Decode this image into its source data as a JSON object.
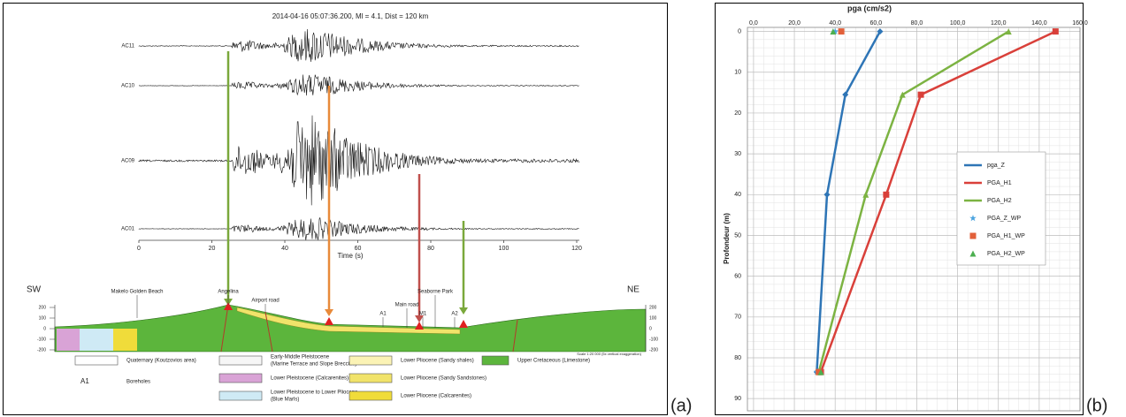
{
  "panel_labels": [
    "(a)",
    "(b)"
  ],
  "panel_a": {
    "title": "2014-04-16 05:07:36.200, Ml = 4.1, Dist = 120 km",
    "stations": [
      "AC11",
      "AC10",
      "AC09",
      "AC01"
    ],
    "time_axis": {
      "label": "Time (s)",
      "ticks": [
        0,
        20,
        40,
        60,
        80,
        100,
        120
      ]
    },
    "section": {
      "left": "SW",
      "right": "NE",
      "elevation_ticks": [
        200,
        100,
        0,
        -100,
        -200
      ],
      "places": [
        "Makelo Golden Beach",
        "Angelina",
        "Airport road",
        "Main road",
        "Seaborne Park",
        "A1",
        "M1",
        "A2"
      ],
      "scale_note": "Scale 1:20 000 (5x vertical exaggeration)"
    },
    "legend": [
      {
        "lines": [
          "Quaternary (Koutzovios area)"
        ]
      },
      {
        "lines": [
          "Boreholes"
        ],
        "symbol": "A1"
      },
      {
        "lines": [
          "Early-Middle Pleistocene",
          "(Marine Terrace and Slope Breccias)"
        ]
      },
      {
        "lines": [
          "Lower Pleistocene (Calcarenites)"
        ]
      },
      {
        "lines": [
          "Lower Pleistocene to Lower Pliocene",
          "(Blue Marls)"
        ]
      },
      {
        "lines": [
          "Lower Pliocene (Sandy shales)"
        ]
      },
      {
        "lines": [
          "Lower Pliocene (Sandy Sandstones)"
        ]
      },
      {
        "lines": [
          "Lower Pliocene (Calcarenites)"
        ]
      },
      {
        "lines": [
          "Upper Cretaceous (Limestone)"
        ]
      }
    ]
  },
  "chart_data": {
    "type": "line",
    "title": "pga (cm/s2)",
    "y_label": "Profondeur (m)",
    "x_axis_position": "top",
    "y_inverted": true,
    "grid": true,
    "minor_grid": true,
    "legend": "center right",
    "xlim": [
      -3,
      160
    ],
    "xticks": [
      {
        "value": 0,
        "label": "0,0"
      },
      {
        "value": 20,
        "label": "20,0"
      },
      {
        "value": 40,
        "label": "40,0"
      },
      {
        "value": 60,
        "label": "60,0"
      },
      {
        "value": 80,
        "label": "80,0"
      },
      {
        "value": 100,
        "label": "100,0"
      },
      {
        "value": 120,
        "label": "120,0"
      },
      {
        "value": 140,
        "label": "140,0"
      },
      {
        "value": 160,
        "label": "160,0"
      }
    ],
    "ylim": [
      -1,
      93
    ],
    "yticks": [
      0,
      10,
      20,
      30,
      40,
      50,
      60,
      70,
      80,
      90
    ],
    "series": [
      {
        "name": "pga_Z",
        "color": "#2e75b6",
        "line": true,
        "marker": "diamond",
        "x": [
          62,
          45,
          36,
          31
        ],
        "values": [
          0,
          15.5,
          40,
          83.5
        ]
      },
      {
        "name": "PGA_H1",
        "color": "#d9403a",
        "line": true,
        "marker": "square",
        "x": [
          148,
          82,
          65,
          33
        ],
        "values": [
          0,
          15.5,
          40,
          83.5
        ]
      },
      {
        "name": "PGA_H2",
        "color": "#7cb342",
        "line": true,
        "marker": "triangle",
        "x": [
          125,
          73,
          55,
          32
        ],
        "values": [
          0,
          15.5,
          40,
          83.5
        ]
      },
      {
        "name": "PGA_Z_WP",
        "color": "#4aa3df",
        "line": false,
        "marker": "star",
        "x": [
          40,
          31
        ],
        "values": [
          0,
          83.5
        ]
      },
      {
        "name": "PGA_H1_WP",
        "color": "#e2603a",
        "line": false,
        "marker": "square",
        "x": [
          43,
          32
        ],
        "values": [
          0,
          83.5
        ]
      },
      {
        "name": "PGA_H2_WP",
        "color": "#4caf50",
        "line": false,
        "marker": "triangle",
        "x": [
          39,
          33
        ],
        "values": [
          0,
          83.5
        ]
      }
    ]
  }
}
